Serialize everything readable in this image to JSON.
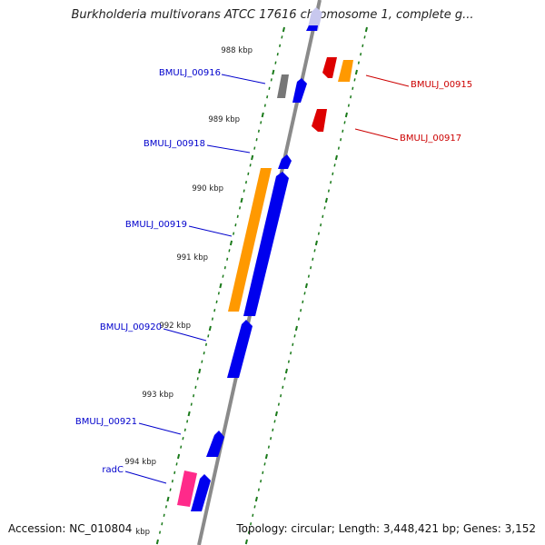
{
  "title": "Burkholderia multivorans ATCC 17616 chromosome 1, complete g...",
  "footer": {
    "accession": "Accession: NC_010804",
    "summary": "Topology: circular; Length: 3,448,421 bp; Genes: 3,152"
  },
  "ticks": [
    "988 kbp",
    "989 kbp",
    "990 kbp",
    "991 kbp",
    "992 kbp",
    "993 kbp",
    "994 kbp"
  ],
  "genes_left": [
    {
      "label": "BMULJ_00916",
      "color": "#0000cc"
    },
    {
      "label": "BMULJ_00918",
      "color": "#0000cc"
    },
    {
      "label": "BMULJ_00919",
      "color": "#0000cc"
    },
    {
      "label": "BMULJ_00920",
      "color": "#0000cc"
    },
    {
      "label": "BMULJ_00921",
      "color": "#0000cc"
    },
    {
      "label": "radC",
      "color": "#0000cc"
    }
  ],
  "genes_right": [
    {
      "label": "BMULJ_00915",
      "color": "#cc0000"
    },
    {
      "label": "BMULJ_00917",
      "color": "#cc0000"
    }
  ],
  "colors": {
    "backbone": "#8a8a8a",
    "forward": "#0000ee",
    "reverse": "#dd0000",
    "orange": "#ff9900",
    "pink": "#ff2a8a",
    "gray_gene": "#777777",
    "tick": "#1a7a1a"
  }
}
